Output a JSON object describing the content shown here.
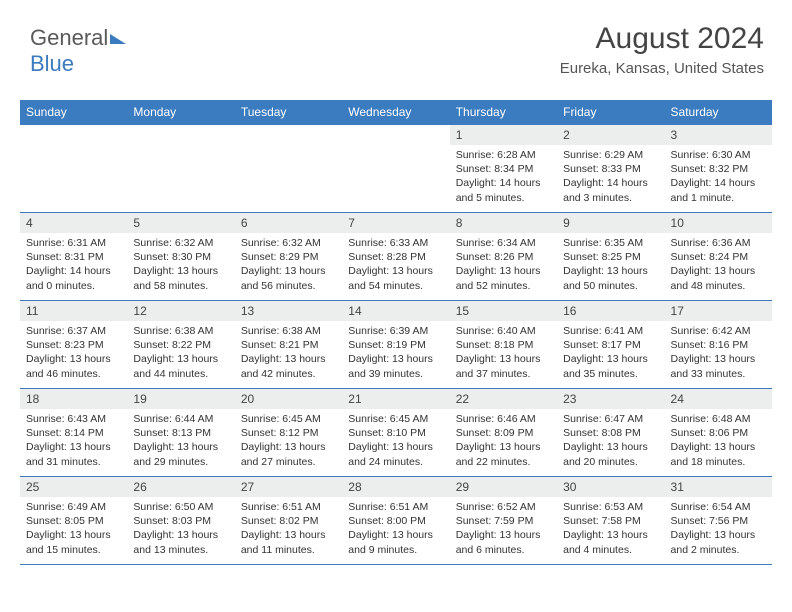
{
  "logo": {
    "part1": "General",
    "part2": "Blue"
  },
  "header": {
    "month_title": "August 2024",
    "location": "Eureka, Kansas, United States"
  },
  "colors": {
    "accent": "#3b7bbf",
    "daynum_bg": "#eceeee",
    "text": "#333333"
  },
  "weekdays": [
    "Sunday",
    "Monday",
    "Tuesday",
    "Wednesday",
    "Thursday",
    "Friday",
    "Saturday"
  ],
  "weeks": [
    [
      null,
      null,
      null,
      null,
      {
        "n": "1",
        "sr": "6:28 AM",
        "ss": "8:34 PM",
        "dl": "14 hours and 5 minutes."
      },
      {
        "n": "2",
        "sr": "6:29 AM",
        "ss": "8:33 PM",
        "dl": "14 hours and 3 minutes."
      },
      {
        "n": "3",
        "sr": "6:30 AM",
        "ss": "8:32 PM",
        "dl": "14 hours and 1 minute."
      }
    ],
    [
      {
        "n": "4",
        "sr": "6:31 AM",
        "ss": "8:31 PM",
        "dl": "14 hours and 0 minutes."
      },
      {
        "n": "5",
        "sr": "6:32 AM",
        "ss": "8:30 PM",
        "dl": "13 hours and 58 minutes."
      },
      {
        "n": "6",
        "sr": "6:32 AM",
        "ss": "8:29 PM",
        "dl": "13 hours and 56 minutes."
      },
      {
        "n": "7",
        "sr": "6:33 AM",
        "ss": "8:28 PM",
        "dl": "13 hours and 54 minutes."
      },
      {
        "n": "8",
        "sr": "6:34 AM",
        "ss": "8:26 PM",
        "dl": "13 hours and 52 minutes."
      },
      {
        "n": "9",
        "sr": "6:35 AM",
        "ss": "8:25 PM",
        "dl": "13 hours and 50 minutes."
      },
      {
        "n": "10",
        "sr": "6:36 AM",
        "ss": "8:24 PM",
        "dl": "13 hours and 48 minutes."
      }
    ],
    [
      {
        "n": "11",
        "sr": "6:37 AM",
        "ss": "8:23 PM",
        "dl": "13 hours and 46 minutes."
      },
      {
        "n": "12",
        "sr": "6:38 AM",
        "ss": "8:22 PM",
        "dl": "13 hours and 44 minutes."
      },
      {
        "n": "13",
        "sr": "6:38 AM",
        "ss": "8:21 PM",
        "dl": "13 hours and 42 minutes."
      },
      {
        "n": "14",
        "sr": "6:39 AM",
        "ss": "8:19 PM",
        "dl": "13 hours and 39 minutes."
      },
      {
        "n": "15",
        "sr": "6:40 AM",
        "ss": "8:18 PM",
        "dl": "13 hours and 37 minutes."
      },
      {
        "n": "16",
        "sr": "6:41 AM",
        "ss": "8:17 PM",
        "dl": "13 hours and 35 minutes."
      },
      {
        "n": "17",
        "sr": "6:42 AM",
        "ss": "8:16 PM",
        "dl": "13 hours and 33 minutes."
      }
    ],
    [
      {
        "n": "18",
        "sr": "6:43 AM",
        "ss": "8:14 PM",
        "dl": "13 hours and 31 minutes."
      },
      {
        "n": "19",
        "sr": "6:44 AM",
        "ss": "8:13 PM",
        "dl": "13 hours and 29 minutes."
      },
      {
        "n": "20",
        "sr": "6:45 AM",
        "ss": "8:12 PM",
        "dl": "13 hours and 27 minutes."
      },
      {
        "n": "21",
        "sr": "6:45 AM",
        "ss": "8:10 PM",
        "dl": "13 hours and 24 minutes."
      },
      {
        "n": "22",
        "sr": "6:46 AM",
        "ss": "8:09 PM",
        "dl": "13 hours and 22 minutes."
      },
      {
        "n": "23",
        "sr": "6:47 AM",
        "ss": "8:08 PM",
        "dl": "13 hours and 20 minutes."
      },
      {
        "n": "24",
        "sr": "6:48 AM",
        "ss": "8:06 PM",
        "dl": "13 hours and 18 minutes."
      }
    ],
    [
      {
        "n": "25",
        "sr": "6:49 AM",
        "ss": "8:05 PM",
        "dl": "13 hours and 15 minutes."
      },
      {
        "n": "26",
        "sr": "6:50 AM",
        "ss": "8:03 PM",
        "dl": "13 hours and 13 minutes."
      },
      {
        "n": "27",
        "sr": "6:51 AM",
        "ss": "8:02 PM",
        "dl": "13 hours and 11 minutes."
      },
      {
        "n": "28",
        "sr": "6:51 AM",
        "ss": "8:00 PM",
        "dl": "13 hours and 9 minutes."
      },
      {
        "n": "29",
        "sr": "6:52 AM",
        "ss": "7:59 PM",
        "dl": "13 hours and 6 minutes."
      },
      {
        "n": "30",
        "sr": "6:53 AM",
        "ss": "7:58 PM",
        "dl": "13 hours and 4 minutes."
      },
      {
        "n": "31",
        "sr": "6:54 AM",
        "ss": "7:56 PM",
        "dl": "13 hours and 2 minutes."
      }
    ]
  ],
  "labels": {
    "sunrise": "Sunrise: ",
    "sunset": "Sunset: ",
    "daylight": "Daylight: "
  }
}
